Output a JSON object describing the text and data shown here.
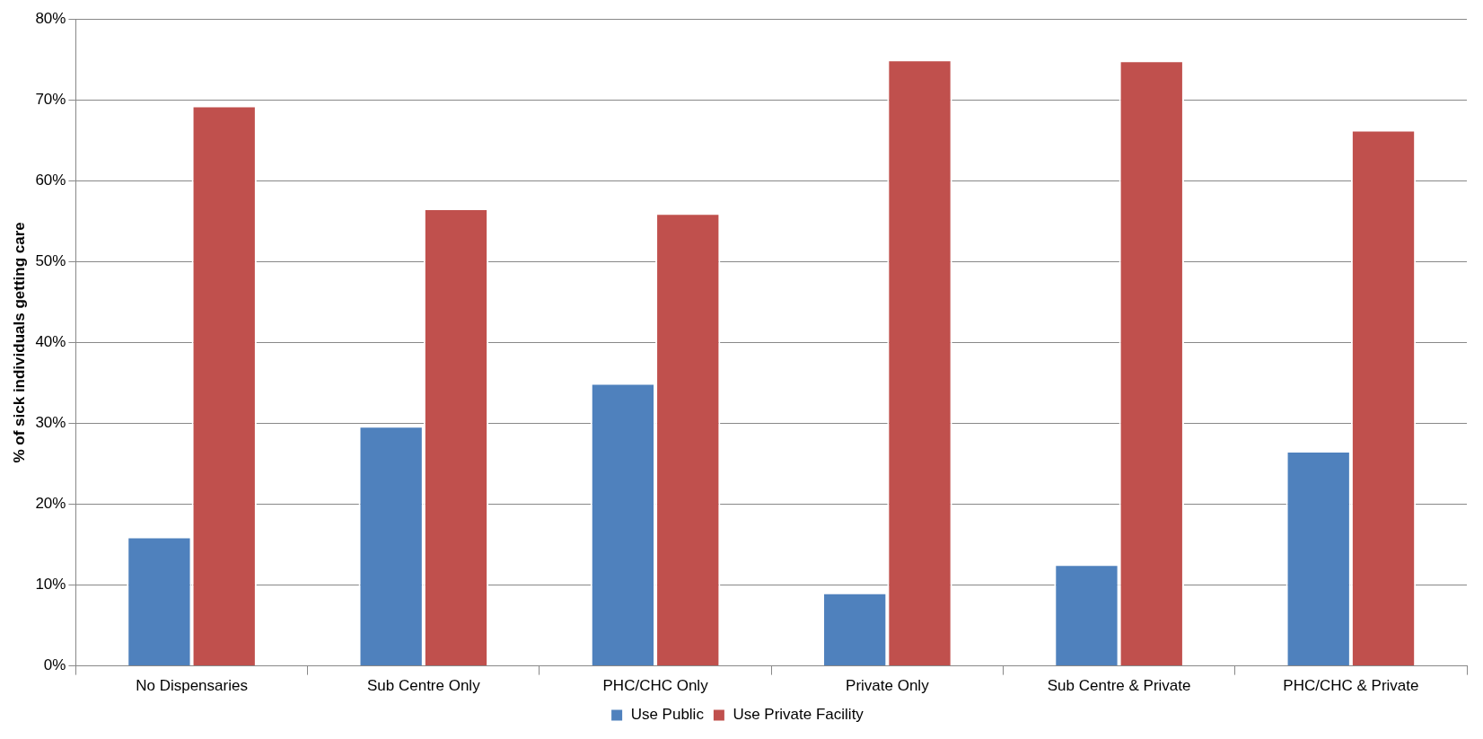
{
  "chart_data": {
    "type": "bar",
    "ylabel": "% of sick individuals getting care",
    "categories": [
      "No Dispensaries",
      "Sub Centre Only",
      "PHC/CHC Only",
      "Private Only",
      "Sub Centre & Private",
      "PHC/CHC & Private"
    ],
    "series": [
      {
        "name": "Use Public",
        "color": "#4f81bd",
        "values": [
          16,
          29.7,
          35,
          9.1,
          12.6,
          26.6
        ]
      },
      {
        "name": "Use Private Facility",
        "color": "#c0504d",
        "values": [
          69.3,
          56.6,
          56,
          75,
          74.9,
          66.3
        ]
      }
    ],
    "ylim": [
      0,
      80
    ],
    "yticks": [
      {
        "value": 0,
        "label": "0%"
      },
      {
        "value": 10,
        "label": "10%"
      },
      {
        "value": 20,
        "label": "20%"
      },
      {
        "value": 30,
        "label": "30%"
      },
      {
        "value": 40,
        "label": "40%"
      },
      {
        "value": 50,
        "label": "50%"
      },
      {
        "value": 60,
        "label": "60%"
      },
      {
        "value": 70,
        "label": "70%"
      },
      {
        "value": 80,
        "label": "80%"
      }
    ],
    "grid": "y",
    "legend": "bottom"
  }
}
